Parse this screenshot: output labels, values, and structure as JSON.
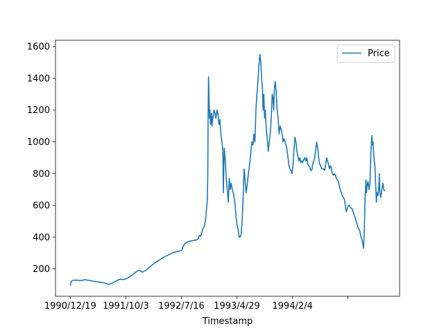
{
  "chart_data": {
    "type": "line",
    "title": "",
    "xlabel": "Timestamp",
    "ylabel": "",
    "x_tick_labels": [
      "1990/12/19",
      "1991/10/3",
      "1992/7/16",
      "1993/4/29",
      "1994/2/4",
      ""
    ],
    "y_ticks": [
      200,
      400,
      600,
      800,
      1000,
      1200,
      1400,
      1600
    ],
    "ylim": [
      28,
      1640
    ],
    "grid": false,
    "legend_position": "top-right",
    "colors": {
      "series": "#1f77b4",
      "axis": "#000000",
      "background": "#ffffff"
    },
    "series": [
      {
        "name": "Price",
        "points": [
          [
            0,
            95
          ],
          [
            3,
            120
          ],
          [
            10,
            128
          ],
          [
            25,
            130
          ],
          [
            40,
            126
          ],
          [
            60,
            132
          ],
          [
            75,
            128
          ],
          [
            95,
            122
          ],
          [
            115,
            118
          ],
          [
            135,
            113
          ],
          [
            155,
            103
          ],
          [
            170,
            110
          ],
          [
            185,
            123
          ],
          [
            200,
            135
          ],
          [
            215,
            133
          ],
          [
            230,
            140
          ],
          [
            245,
            155
          ],
          [
            260,
            173
          ],
          [
            272,
            188
          ],
          [
            282,
            190
          ],
          [
            292,
            180
          ],
          [
            305,
            190
          ],
          [
            320,
            210
          ],
          [
            340,
            235
          ],
          [
            360,
            255
          ],
          [
            380,
            275
          ],
          [
            400,
            290
          ],
          [
            420,
            305
          ],
          [
            440,
            312
          ],
          [
            452,
            318
          ],
          [
            458,
            345
          ],
          [
            465,
            360
          ],
          [
            472,
            368
          ],
          [
            485,
            375
          ],
          [
            500,
            380
          ],
          [
            510,
            382
          ],
          [
            518,
            390
          ],
          [
            523,
            412
          ],
          [
            528,
            405
          ],
          [
            533,
            430
          ],
          [
            538,
            455
          ],
          [
            543,
            470
          ],
          [
            547,
            500
          ],
          [
            550,
            540
          ],
          [
            553,
            600
          ],
          [
            555,
            630
          ],
          [
            557,
            800
          ],
          [
            558,
            1100
          ],
          [
            559,
            1250
          ],
          [
            560,
            1410
          ],
          [
            562,
            1270
          ],
          [
            564,
            1150
          ],
          [
            566,
            1200
          ],
          [
            568,
            1110
          ],
          [
            570,
            1130
          ],
          [
            572,
            1180
          ],
          [
            574,
            1100
          ],
          [
            578,
            1160
          ],
          [
            582,
            1200
          ],
          [
            586,
            1180
          ],
          [
            590,
            1150
          ],
          [
            594,
            1200
          ],
          [
            598,
            1180
          ],
          [
            602,
            1110
          ],
          [
            606,
            1140
          ],
          [
            610,
            1050
          ],
          [
            614,
            1000
          ],
          [
            618,
            950
          ],
          [
            620,
            680
          ],
          [
            622,
            850
          ],
          [
            624,
            960
          ],
          [
            628,
            880
          ],
          [
            632,
            760
          ],
          [
            636,
            700
          ],
          [
            640,
            620
          ],
          [
            644,
            770
          ],
          [
            648,
            700
          ],
          [
            652,
            740
          ],
          [
            656,
            700
          ],
          [
            660,
            680
          ],
          [
            664,
            650
          ],
          [
            668,
            600
          ],
          [
            672,
            520
          ],
          [
            676,
            470
          ],
          [
            680,
            450
          ],
          [
            684,
            400
          ],
          [
            688,
            400
          ],
          [
            692,
            420
          ],
          [
            696,
            500
          ],
          [
            700,
            640
          ],
          [
            704,
            830
          ],
          [
            708,
            760
          ],
          [
            712,
            680
          ],
          [
            716,
            720
          ],
          [
            720,
            780
          ],
          [
            724,
            830
          ],
          [
            728,
            880
          ],
          [
            732,
            950
          ],
          [
            736,
            1000
          ],
          [
            740,
            980
          ],
          [
            744,
            1050
          ],
          [
            748,
            1000
          ],
          [
            752,
            1200
          ],
          [
            756,
            1300
          ],
          [
            760,
            1380
          ],
          [
            764,
            1480
          ],
          [
            768,
            1550
          ],
          [
            772,
            1500
          ],
          [
            775,
            1400
          ],
          [
            778,
            1350
          ],
          [
            781,
            1200
          ],
          [
            784,
            1300
          ],
          [
            787,
            1150
          ],
          [
            790,
            1200
          ],
          [
            793,
            1100
          ],
          [
            796,
            1050
          ],
          [
            799,
            1000
          ],
          [
            802,
            940
          ],
          [
            806,
            1000
          ],
          [
            810,
            1050
          ],
          [
            814,
            1150
          ],
          [
            818,
            1300
          ],
          [
            821,
            1280
          ],
          [
            824,
            1200
          ],
          [
            827,
            1340
          ],
          [
            830,
            1380
          ],
          [
            834,
            1320
          ],
          [
            838,
            1200
          ],
          [
            842,
            1150
          ],
          [
            846,
            1050
          ],
          [
            850,
            1100
          ],
          [
            854,
            1080
          ],
          [
            858,
            1050
          ],
          [
            862,
            1000
          ],
          [
            866,
            1020
          ],
          [
            870,
            1000
          ],
          [
            874,
            980
          ],
          [
            878,
            950
          ],
          [
            882,
            900
          ],
          [
            886,
            850
          ],
          [
            890,
            830
          ],
          [
            894,
            820
          ],
          [
            898,
            800
          ],
          [
            902,
            850
          ],
          [
            906,
            950
          ],
          [
            910,
            1030
          ],
          [
            914,
            1000
          ],
          [
            918,
            940
          ],
          [
            922,
            910
          ],
          [
            926,
            880
          ],
          [
            930,
            900
          ],
          [
            934,
            870
          ],
          [
            938,
            880
          ],
          [
            942,
            870
          ],
          [
            946,
            890
          ],
          [
            950,
            900
          ],
          [
            954,
            880
          ],
          [
            958,
            900
          ],
          [
            962,
            860
          ],
          [
            966,
            850
          ],
          [
            970,
            840
          ],
          [
            974,
            820
          ],
          [
            978,
            820
          ],
          [
            982,
            860
          ],
          [
            986,
            880
          ],
          [
            990,
            900
          ],
          [
            994,
            950
          ],
          [
            998,
            1000
          ],
          [
            1002,
            960
          ],
          [
            1006,
            900
          ],
          [
            1010,
            860
          ],
          [
            1014,
            850
          ],
          [
            1018,
            830
          ],
          [
            1022,
            830
          ],
          [
            1026,
            830
          ],
          [
            1030,
            820
          ],
          [
            1034,
            850
          ],
          [
            1038,
            900
          ],
          [
            1042,
            880
          ],
          [
            1046,
            860
          ],
          [
            1050,
            830
          ],
          [
            1054,
            850
          ],
          [
            1058,
            830
          ],
          [
            1062,
            800
          ],
          [
            1066,
            790
          ],
          [
            1070,
            800
          ],
          [
            1074,
            790
          ],
          [
            1078,
            770
          ],
          [
            1082,
            760
          ],
          [
            1086,
            750
          ],
          [
            1090,
            720
          ],
          [
            1094,
            700
          ],
          [
            1098,
            680
          ],
          [
            1102,
            660
          ],
          [
            1106,
            650
          ],
          [
            1110,
            640
          ],
          [
            1114,
            600
          ],
          [
            1118,
            560
          ],
          [
            1122,
            580
          ],
          [
            1126,
            600
          ],
          [
            1130,
            600
          ],
          [
            1134,
            590
          ],
          [
            1138,
            580
          ],
          [
            1142,
            580
          ],
          [
            1146,
            560
          ],
          [
            1150,
            540
          ],
          [
            1154,
            520
          ],
          [
            1158,
            500
          ],
          [
            1162,
            480
          ],
          [
            1166,
            460
          ],
          [
            1170,
            450
          ],
          [
            1174,
            430
          ],
          [
            1178,
            400
          ],
          [
            1182,
            380
          ],
          [
            1186,
            350
          ],
          [
            1188,
            330
          ],
          [
            1190,
            400
          ],
          [
            1192,
            500
          ],
          [
            1194,
            650
          ],
          [
            1196,
            700
          ],
          [
            1198,
            760
          ],
          [
            1200,
            680
          ],
          [
            1202,
            720
          ],
          [
            1206,
            750
          ],
          [
            1210,
            700
          ],
          [
            1214,
            740
          ],
          [
            1216,
            850
          ],
          [
            1218,
            950
          ],
          [
            1220,
            1000
          ],
          [
            1222,
            1040
          ],
          [
            1224,
            980
          ],
          [
            1226,
            1000
          ],
          [
            1230,
            900
          ],
          [
            1234,
            850
          ],
          [
            1238,
            700
          ],
          [
            1240,
            620
          ],
          [
            1242,
            680
          ],
          [
            1246,
            660
          ],
          [
            1250,
            720
          ],
          [
            1252,
            800
          ],
          [
            1254,
            680
          ],
          [
            1258,
            650
          ],
          [
            1262,
            700
          ],
          [
            1266,
            740
          ],
          [
            1270,
            700
          ],
          [
            1274,
            690
          ]
        ]
      }
    ]
  }
}
